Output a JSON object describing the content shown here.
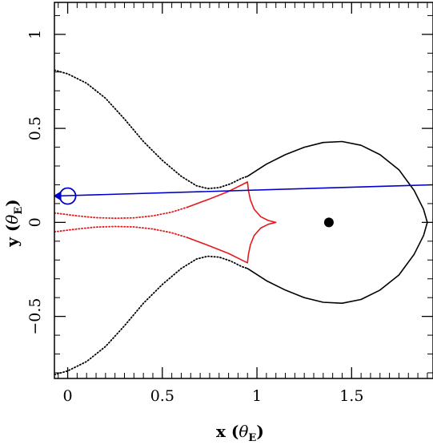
{
  "chart_data": {
    "type": "line",
    "xlabel": "x",
    "ylabel": "y",
    "axis_unit_symbol": "θ",
    "axis_unit_subscript": "E",
    "xlim": [
      -0.07,
      1.93
    ],
    "ylim": [
      -0.83,
      1.17
    ],
    "xticks": [
      0,
      0.5,
      1,
      1.5
    ],
    "xtick_labels": [
      "0",
      "0.5",
      "1",
      "1.5"
    ],
    "yticks": [
      -0.5,
      0,
      0.5,
      1
    ],
    "ytick_labels": [
      "−0.5",
      "0",
      "0.5",
      "1"
    ],
    "grid": false,
    "colors": {
      "critical_curve": "#000000",
      "caustic": "#e41a1c",
      "trajectory": "#0000cc",
      "lens": "#000000",
      "source": "#0000cc"
    },
    "series": [
      {
        "role": "critical-curve-upper-dotted",
        "style": "dotted",
        "color": "#000000",
        "points": [
          [
            -0.07,
            0.81
          ],
          [
            0.0,
            0.79
          ],
          [
            0.1,
            0.74
          ],
          [
            0.2,
            0.66
          ],
          [
            0.3,
            0.55
          ],
          [
            0.4,
            0.43
          ],
          [
            0.5,
            0.33
          ],
          [
            0.6,
            0.245
          ],
          [
            0.68,
            0.195
          ],
          [
            0.74,
            0.18
          ],
          [
            0.8,
            0.185
          ],
          [
            0.86,
            0.205
          ],
          [
            0.92,
            0.235
          ],
          [
            0.95,
            0.245
          ]
        ]
      },
      {
        "role": "critical-curve-lower-dotted",
        "style": "dotted",
        "color": "#000000",
        "points": [
          [
            -0.07,
            -0.81
          ],
          [
            0.0,
            -0.79
          ],
          [
            0.1,
            -0.74
          ],
          [
            0.2,
            -0.66
          ],
          [
            0.3,
            -0.55
          ],
          [
            0.4,
            -0.43
          ],
          [
            0.5,
            -0.33
          ],
          [
            0.6,
            -0.245
          ],
          [
            0.68,
            -0.195
          ],
          [
            0.74,
            -0.18
          ],
          [
            0.8,
            -0.185
          ],
          [
            0.86,
            -0.205
          ],
          [
            0.92,
            -0.235
          ],
          [
            0.95,
            -0.245
          ]
        ]
      },
      {
        "role": "critical-curve-solid",
        "style": "solid",
        "color": "#000000",
        "points": [
          [
            0.95,
            0.245
          ],
          [
            1.05,
            0.31
          ],
          [
            1.15,
            0.36
          ],
          [
            1.25,
            0.4
          ],
          [
            1.35,
            0.425
          ],
          [
            1.45,
            0.43
          ],
          [
            1.55,
            0.41
          ],
          [
            1.65,
            0.36
          ],
          [
            1.75,
            0.28
          ],
          [
            1.83,
            0.17
          ],
          [
            1.88,
            0.07
          ],
          [
            1.9,
            0.0
          ],
          [
            1.88,
            -0.07
          ],
          [
            1.83,
            -0.17
          ],
          [
            1.75,
            -0.28
          ],
          [
            1.65,
            -0.36
          ],
          [
            1.55,
            -0.41
          ],
          [
            1.45,
            -0.43
          ],
          [
            1.35,
            -0.425
          ],
          [
            1.25,
            -0.4
          ],
          [
            1.15,
            -0.36
          ],
          [
            1.05,
            -0.31
          ],
          [
            0.95,
            -0.245
          ]
        ]
      },
      {
        "role": "caustic-upper-dotted",
        "style": "dotted",
        "color": "#e41a1c",
        "points": [
          [
            -0.07,
            0.05
          ],
          [
            0.05,
            0.035
          ],
          [
            0.15,
            0.025
          ],
          [
            0.25,
            0.022
          ],
          [
            0.35,
            0.024
          ],
          [
            0.45,
            0.035
          ],
          [
            0.55,
            0.055
          ],
          [
            0.63,
            0.08
          ]
        ]
      },
      {
        "role": "caustic-lower-dotted",
        "style": "dotted",
        "color": "#e41a1c",
        "points": [
          [
            -0.07,
            -0.05
          ],
          [
            0.05,
            -0.035
          ],
          [
            0.15,
            -0.025
          ],
          [
            0.25,
            -0.022
          ],
          [
            0.35,
            -0.024
          ],
          [
            0.45,
            -0.035
          ],
          [
            0.55,
            -0.055
          ],
          [
            0.63,
            -0.08
          ]
        ]
      },
      {
        "role": "caustic-solid",
        "style": "solid",
        "color": "#e41a1c",
        "points": [
          [
            0.63,
            0.08
          ],
          [
            0.75,
            0.125
          ],
          [
            0.85,
            0.165
          ],
          [
            0.92,
            0.2
          ],
          [
            0.95,
            0.215
          ],
          [
            0.955,
            0.17
          ],
          [
            0.965,
            0.12
          ],
          [
            0.985,
            0.07
          ],
          [
            1.02,
            0.03
          ],
          [
            1.06,
            0.01
          ],
          [
            1.1,
            0.0
          ],
          [
            1.06,
            -0.01
          ],
          [
            1.02,
            -0.03
          ],
          [
            0.985,
            -0.07
          ],
          [
            0.965,
            -0.12
          ],
          [
            0.955,
            -0.17
          ],
          [
            0.95,
            -0.215
          ],
          [
            0.92,
            -0.2
          ],
          [
            0.85,
            -0.165
          ],
          [
            0.75,
            -0.125
          ],
          [
            0.63,
            -0.08
          ]
        ]
      },
      {
        "role": "source-trajectory",
        "style": "solid",
        "color": "#0000cc",
        "points": [
          [
            -0.07,
            0.14
          ],
          [
            1.93,
            0.2
          ]
        ]
      }
    ],
    "markers": [
      {
        "role": "lens-position",
        "shape": "filled-circle",
        "x": 1.38,
        "y": 0.0,
        "color": "#000000"
      },
      {
        "role": "source-position",
        "shape": "open-circle",
        "x": 0.0,
        "y": 0.14,
        "color": "#0000cc"
      },
      {
        "role": "trajectory-arrow",
        "shape": "arrowhead-left",
        "x": -0.055,
        "y": 0.1405,
        "color": "#0000cc"
      }
    ]
  }
}
